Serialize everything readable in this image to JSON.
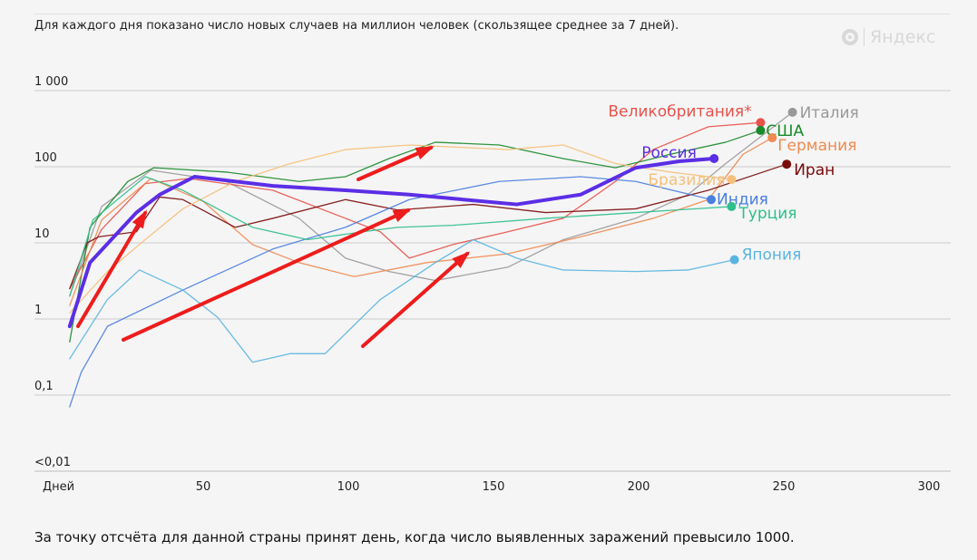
{
  "subtitle": "Для каждого дня показано число новых случаев на миллион человек (скользящее среднее за 7 дней).",
  "logo": "Яндекс",
  "footnote": "За точку отсчёта для данной страны принят день, когда число выявленных заражений превысило 1000.",
  "chart_data": {
    "type": "line",
    "title": "",
    "xlabel": "Дней",
    "ylabel": "",
    "x_scale": "linear",
    "y_scale": "log",
    "xlim": [
      0,
      300
    ],
    "ylim": [
      0.01,
      1000
    ],
    "x_ticks": [
      "Дней",
      "50",
      "100",
      "150",
      "200",
      "250",
      "300"
    ],
    "y_ticks": [
      "1 000",
      "100",
      "10",
      "1",
      "0,1",
      "<0,01"
    ],
    "grid": true,
    "annotations": "red arrows highlighting growth segments",
    "series": [
      {
        "name": "Италия",
        "color": "#999999",
        "points": [
          [
            4,
            2
          ],
          [
            15,
            30
          ],
          [
            32,
            90
          ],
          [
            58,
            64
          ],
          [
            83,
            21
          ],
          [
            99,
            6.3
          ],
          [
            114,
            4.2
          ],
          [
            130,
            3.2
          ],
          [
            155,
            4.8
          ],
          [
            174,
            11
          ],
          [
            199,
            21
          ],
          [
            217,
            43
          ],
          [
            230,
            110
          ],
          [
            253,
            520
          ]
        ]
      },
      {
        "name": "Великобритания*",
        "color": "#e8524a",
        "points": [
          [
            4,
            2.5
          ],
          [
            15,
            15
          ],
          [
            30,
            60
          ],
          [
            45,
            70
          ],
          [
            74,
            49
          ],
          [
            99,
            21
          ],
          [
            111,
            14
          ],
          [
            121,
            6.3
          ],
          [
            136,
            9.5
          ],
          [
            155,
            14
          ],
          [
            174,
            21
          ],
          [
            192,
            64
          ],
          [
            205,
            168
          ],
          [
            224,
            335
          ],
          [
            242,
            380
          ]
        ]
      },
      {
        "name": "США",
        "color": "#1a8a2a",
        "points": [
          [
            4,
            0.5
          ],
          [
            11,
            16
          ],
          [
            24,
            64
          ],
          [
            33,
            97
          ],
          [
            58,
            85
          ],
          [
            83,
            64
          ],
          [
            99,
            74
          ],
          [
            114,
            128
          ],
          [
            130,
            210
          ],
          [
            152,
            193
          ],
          [
            174,
            128
          ],
          [
            192,
            97
          ],
          [
            211,
            146
          ],
          [
            230,
            210
          ],
          [
            242,
            300
          ]
        ]
      },
      {
        "name": "Германия",
        "color": "#f08a50",
        "points": [
          [
            4,
            1.5
          ],
          [
            15,
            20
          ],
          [
            32,
            70
          ],
          [
            50,
            35
          ],
          [
            67,
            9.5
          ],
          [
            83,
            5.5
          ],
          [
            102,
            3.6
          ],
          [
            127,
            5.5
          ],
          [
            155,
            7.2
          ],
          [
            180,
            12
          ],
          [
            205,
            21
          ],
          [
            224,
            37
          ],
          [
            236,
            146
          ],
          [
            246,
            240
          ]
        ]
      },
      {
        "name": "Иран",
        "color": "#7a0a0a",
        "points": [
          [
            4,
            2.5
          ],
          [
            10,
            10
          ],
          [
            14,
            12
          ],
          [
            27,
            14
          ],
          [
            35,
            40
          ],
          [
            43,
            37
          ],
          [
            61,
            16
          ],
          [
            74,
            21
          ],
          [
            99,
            37
          ],
          [
            117,
            27
          ],
          [
            143,
            32
          ],
          [
            168,
            25
          ],
          [
            199,
            28
          ],
          [
            224,
            49
          ],
          [
            251,
            108
          ]
        ]
      },
      {
        "name": "Бразилия",
        "color": "#f5c07a",
        "points": [
          [
            4,
            1.2
          ],
          [
            17,
            4.2
          ],
          [
            30,
            11
          ],
          [
            43,
            28
          ],
          [
            61,
            64
          ],
          [
            80,
            110
          ],
          [
            99,
            168
          ],
          [
            121,
            193
          ],
          [
            155,
            168
          ],
          [
            174,
            193
          ],
          [
            192,
            110
          ],
          [
            211,
            85
          ],
          [
            232,
            68
          ]
        ]
      },
      {
        "name": "Индия",
        "color": "#4a7ee0",
        "points": [
          [
            4,
            0.07
          ],
          [
            8,
            0.2
          ],
          [
            17,
            0.8
          ],
          [
            43,
            2.4
          ],
          [
            74,
            8.3
          ],
          [
            99,
            16
          ],
          [
            121,
            37
          ],
          [
            152,
            64
          ],
          [
            180,
            74
          ],
          [
            199,
            64
          ],
          [
            225,
            37
          ]
        ]
      },
      {
        "name": "Турция",
        "color": "#2fbf8a",
        "points": [
          [
            4,
            2
          ],
          [
            12,
            20
          ],
          [
            30,
            74
          ],
          [
            43,
            49
          ],
          [
            67,
            16
          ],
          [
            86,
            11
          ],
          [
            105,
            14
          ],
          [
            117,
            16
          ],
          [
            136,
            17
          ],
          [
            168,
            21
          ],
          [
            199,
            25
          ],
          [
            232,
            30
          ]
        ]
      },
      {
        "name": "Япония",
        "color": "#5ab4e0",
        "points": [
          [
            4,
            0.3
          ],
          [
            17,
            1.8
          ],
          [
            28,
            4.4
          ],
          [
            43,
            2.4
          ],
          [
            55,
            1.05
          ],
          [
            67,
            0.27
          ],
          [
            80,
            0.35
          ],
          [
            92,
            0.35
          ],
          [
            111,
            1.8
          ],
          [
            130,
            5.5
          ],
          [
            143,
            11
          ],
          [
            158,
            6.3
          ],
          [
            174,
            4.4
          ],
          [
            199,
            4.2
          ],
          [
            217,
            4.4
          ],
          [
            233,
            6
          ]
        ]
      },
      {
        "name": "Россия",
        "color": "#5b2ee6",
        "highlight": true,
        "points": [
          [
            4,
            0.8
          ],
          [
            11,
            5.5
          ],
          [
            27,
            25
          ],
          [
            35,
            43
          ],
          [
            47,
            74
          ],
          [
            74,
            56
          ],
          [
            99,
            49
          ],
          [
            121,
            43
          ],
          [
            158,
            32
          ],
          [
            180,
            43
          ],
          [
            199,
            97
          ],
          [
            214,
            118
          ],
          [
            226,
            128
          ]
        ]
      }
    ]
  }
}
